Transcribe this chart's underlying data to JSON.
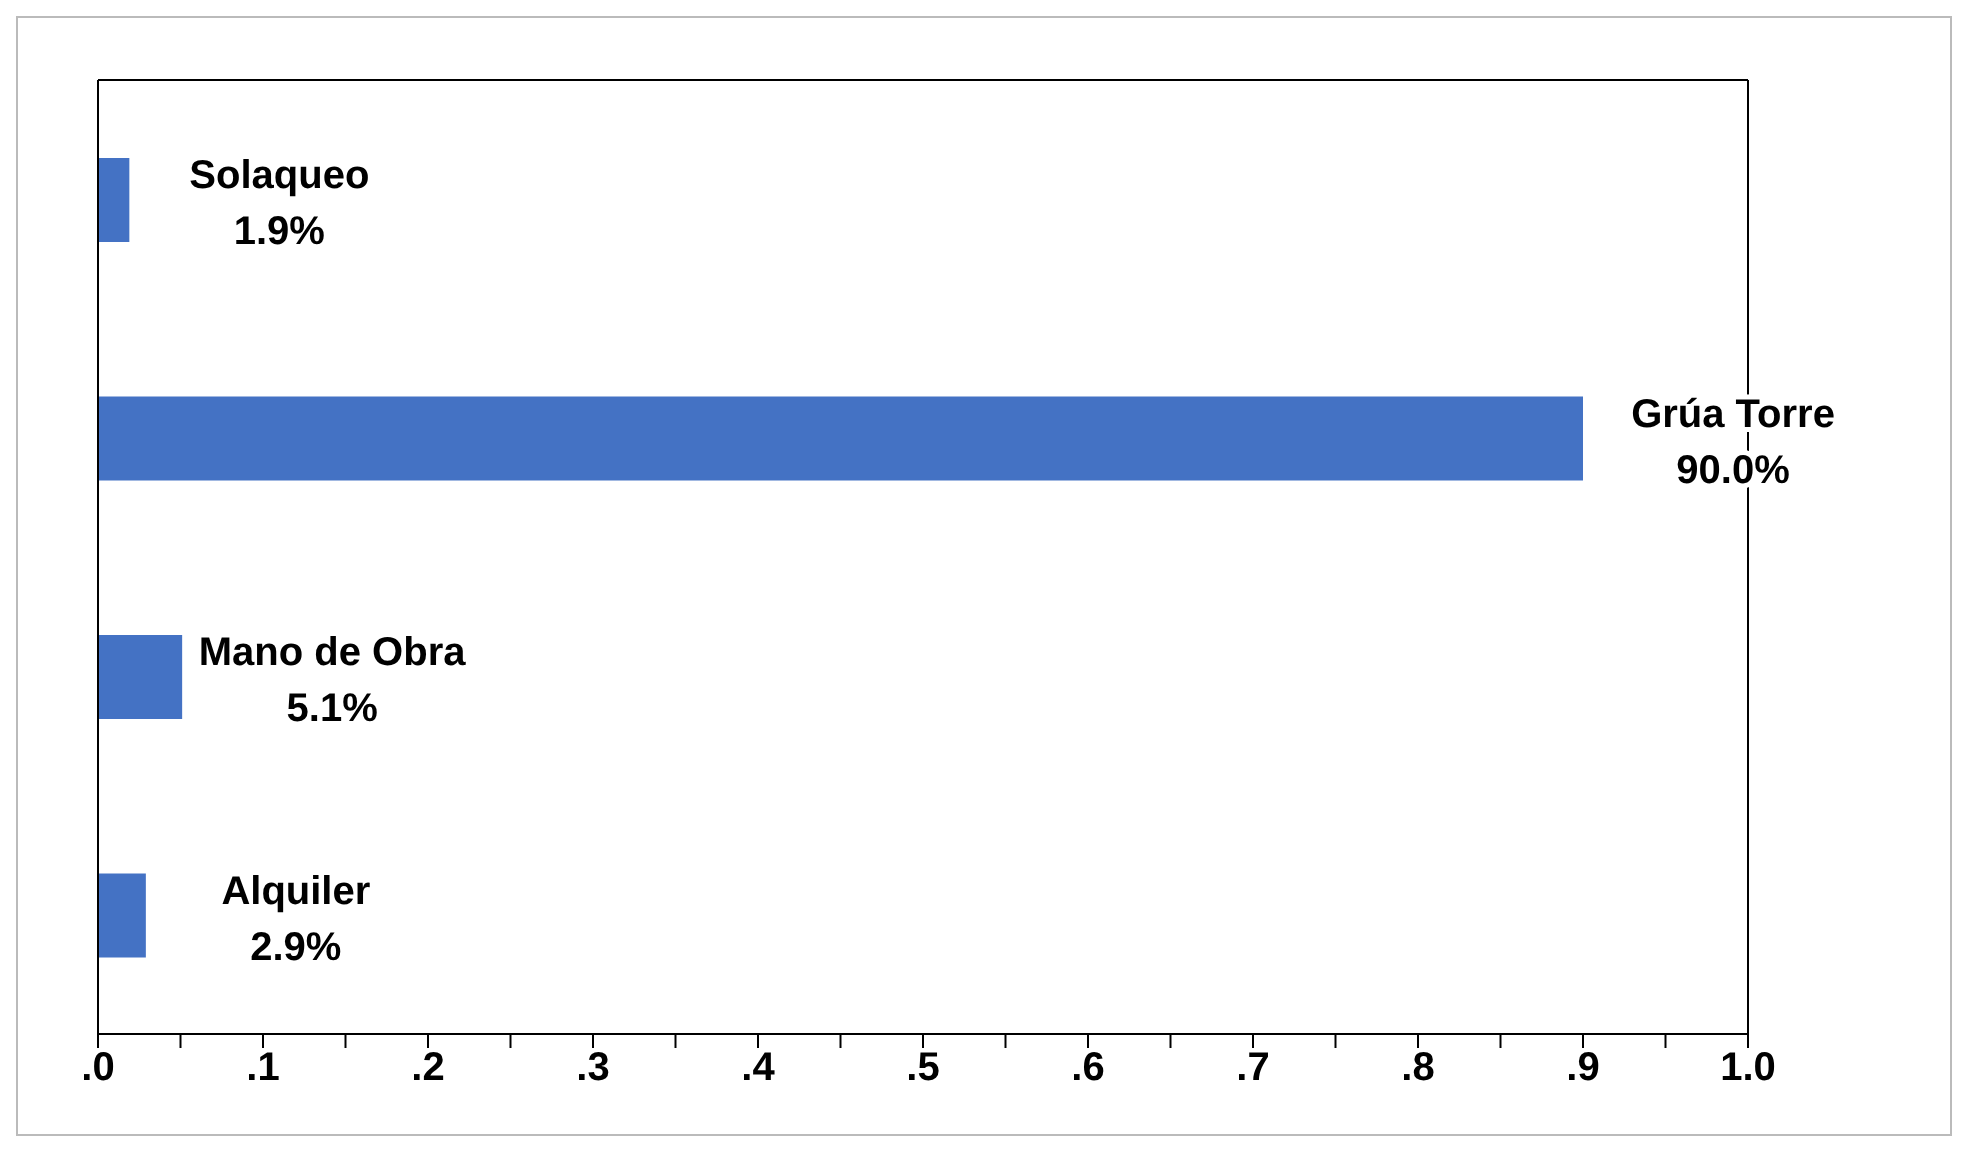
{
  "chart_data": {
    "type": "bar",
    "orientation": "horizontal",
    "categories": [
      "Solaqueo",
      "Grúa Torre",
      "Mano de Obra",
      "Alquiler"
    ],
    "values": [
      0.019,
      0.9,
      0.051,
      0.029
    ],
    "value_labels": [
      "1.9%",
      "90.0%",
      "5.1%",
      "2.9%"
    ],
    "color": "#4472c4",
    "xlim": [
      0,
      1
    ],
    "xticks": [
      {
        "value": 0,
        "label": ".0"
      },
      {
        "value": 0.05,
        "label": null
      },
      {
        "value": 0.1,
        "label": ".1"
      },
      {
        "value": 0.15,
        "label": null
      },
      {
        "value": 0.2,
        "label": ".2"
      },
      {
        "value": 0.25,
        "label": null
      },
      {
        "value": 0.3,
        "label": ".3"
      },
      {
        "value": 0.35,
        "label": null
      },
      {
        "value": 0.4,
        "label": ".4"
      },
      {
        "value": 0.45,
        "label": null
      },
      {
        "value": 0.5,
        "label": ".5"
      },
      {
        "value": 0.55,
        "label": null
      },
      {
        "value": 0.6,
        "label": ".6"
      },
      {
        "value": 0.65,
        "label": null
      },
      {
        "value": 0.7,
        "label": ".7"
      },
      {
        "value": 0.75,
        "label": null
      },
      {
        "value": 0.8,
        "label": ".8"
      },
      {
        "value": 0.85,
        "label": null
      },
      {
        "value": 0.9,
        "label": ".9"
      },
      {
        "value": 0.95,
        "label": null
      },
      {
        "value": 1,
        "label": "1.0"
      }
    ],
    "grid": false,
    "legend": false
  }
}
